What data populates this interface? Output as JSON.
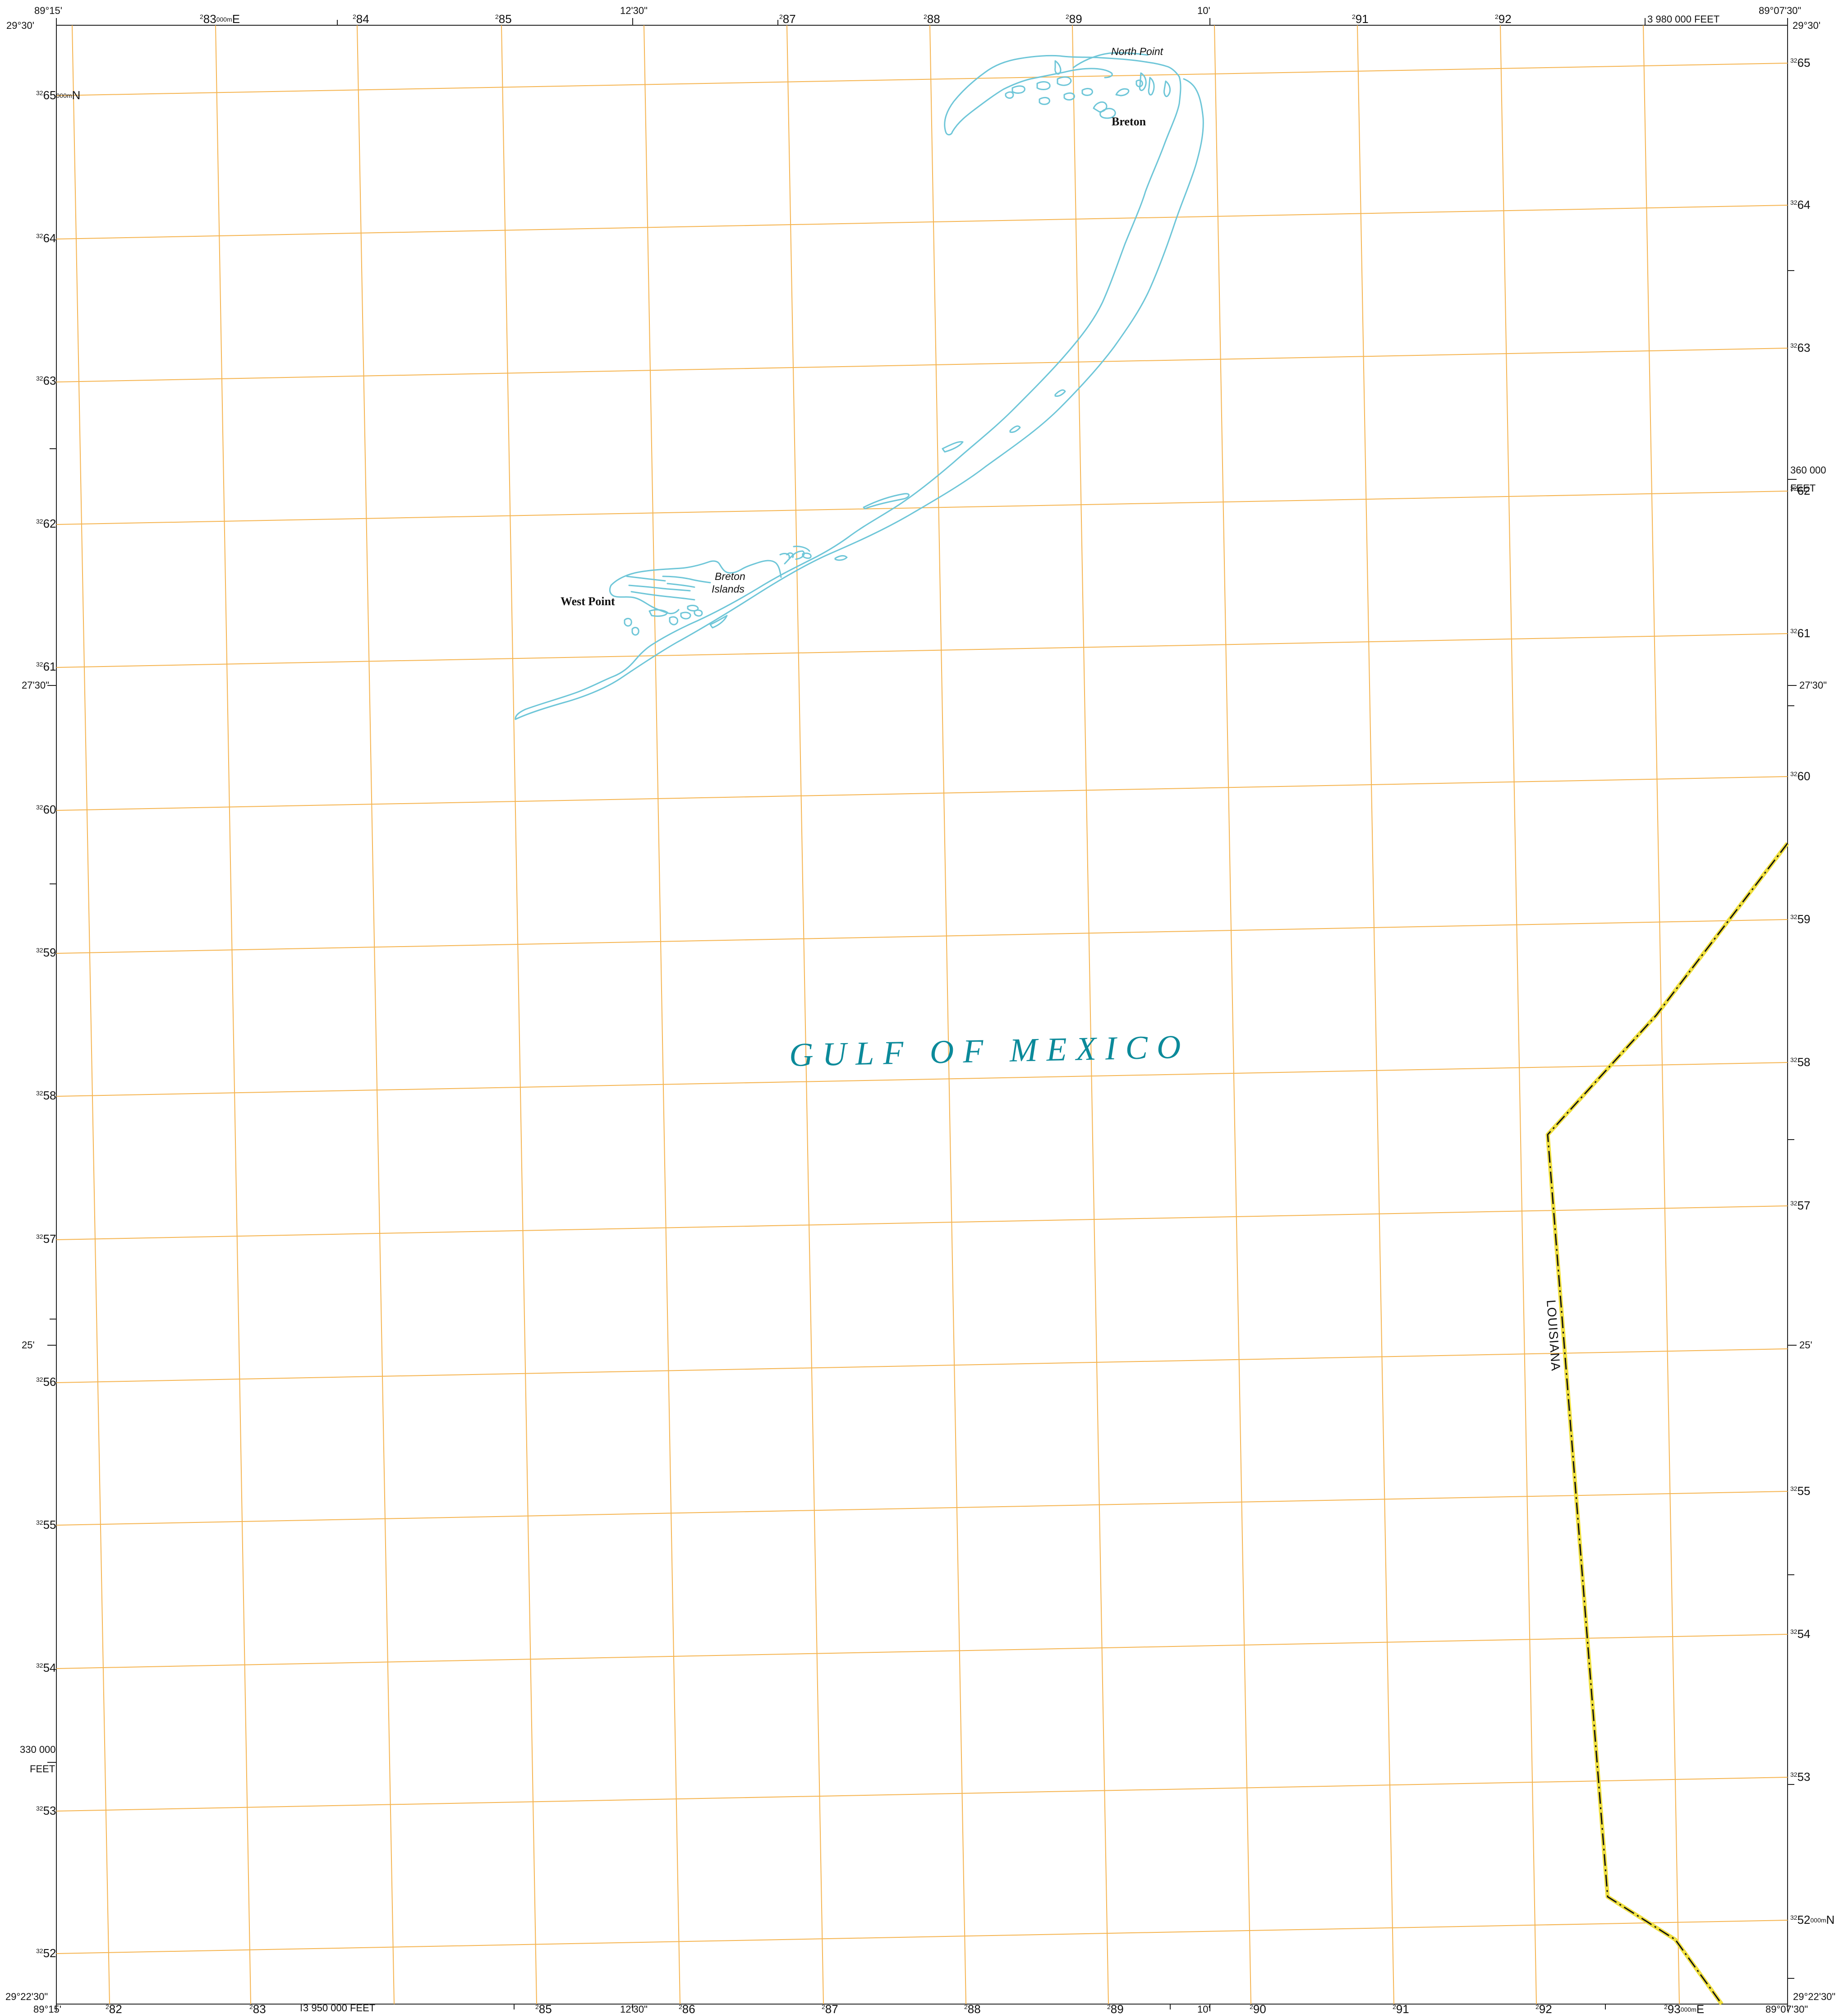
{
  "corners": {
    "top_left_lon": "89°15'",
    "top_left_lat": "29°30'",
    "top_right_lon": "89°07'30\"",
    "top_right_lat": "29°30'",
    "bottom_left_lon": "89°15'",
    "bottom_left_lat": "29°22'30\"",
    "bottom_right_lon": "89°07'30\"",
    "bottom_right_lat": "29°22'30\""
  },
  "graticule": {
    "top_mid_lon_1": "12'30\"",
    "top_mid_lon_2": "10'",
    "bottom_mid_lon_1": "12'30\"",
    "bottom_mid_lon_2": "10'",
    "left_lat_1": "27'30\"",
    "left_lat_2": "25'",
    "right_lat_1": "27'30\"",
    "right_lat_2": "25'"
  },
  "feet_ticks": {
    "top_east": "3 980 000 FEET",
    "bottom_east": "3 950 000 FEET",
    "right_north_value": "360 000",
    "right_north_unit": "FEET",
    "left_north_value": "330 000",
    "left_north_unit": "FEET"
  },
  "utm": {
    "easting_prefix": "2",
    "northing_prefix": "32",
    "easting_top": [
      "83",
      "84",
      "85",
      "87",
      "88",
      "89",
      "91",
      "92"
    ],
    "easting_bottom": [
      "82",
      "83",
      "85",
      "86",
      "87",
      "88",
      "89",
      "90",
      "91",
      "92",
      "93"
    ],
    "northing_left": [
      "65",
      "64",
      "63",
      "62",
      "61",
      "60",
      "59",
      "58",
      "57",
      "56",
      "55",
      "54",
      "53",
      "52"
    ],
    "northing_right": [
      "65",
      "64",
      "63",
      "62",
      "61",
      "60",
      "59",
      "58",
      "57",
      "55",
      "54",
      "53",
      "52"
    ],
    "easting_suffix_top": "000m",
    "easting_unit": "E",
    "northing_suffix": "000m",
    "northing_unit": "N"
  },
  "places": {
    "north_point": "North Point",
    "breton": "Breton",
    "breton_islands_line1": "Breton",
    "breton_islands_line2": "Islands",
    "west_point": "West Point"
  },
  "water_body": "GULF OF MEXICO",
  "state_boundary_label": "LOUISIANA",
  "colors": {
    "grid_lines": "#f5b450",
    "shoreline": "#6ec6d8",
    "water_label": "#0b8a9a",
    "state_boundary_dash": "#111111",
    "state_boundary_casing": "#f0e040",
    "neatline": "#222222"
  }
}
